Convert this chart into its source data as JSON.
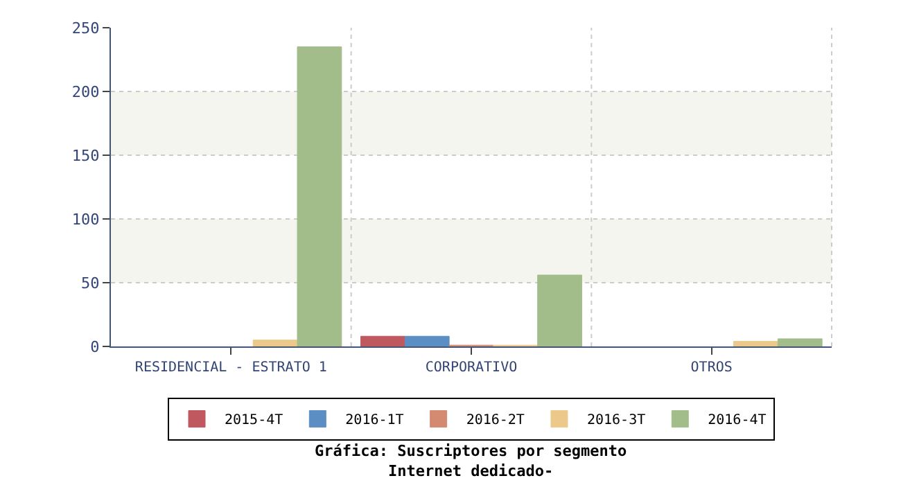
{
  "chart_data": {
    "type": "bar",
    "title": "Gráfica: Suscriptores por segmento\nInternet dedicado-",
    "categories": [
      "RESIDENCIAL - ESTRATO 1",
      "CORPORATIVO",
      "OTROS"
    ],
    "series": [
      {
        "name": "2015-4T",
        "color": "#c05860",
        "values": [
          null,
          8,
          null
        ]
      },
      {
        "name": "2016-1T",
        "color": "#5b8fc4",
        "values": [
          null,
          8,
          null
        ]
      },
      {
        "name": "2016-2T",
        "color": "#d48a70",
        "values": [
          null,
          1,
          null
        ]
      },
      {
        "name": "2016-3T",
        "color": "#ecc98a",
        "values": [
          5,
          1,
          4
        ]
      },
      {
        "name": "2016-4T",
        "color": "#a2bd8a",
        "values": [
          235,
          56,
          6
        ]
      }
    ],
    "ylim": [
      0,
      250
    ],
    "yticks": [
      0,
      50,
      100,
      150,
      200,
      250
    ],
    "bands": [
      {
        "axis": "y",
        "from": 50,
        "to": 100,
        "color": "#f5f5f0"
      },
      {
        "axis": "y",
        "from": 150,
        "to": 200,
        "color": "#f5f5f0"
      }
    ],
    "grid": true,
    "legend": "bottom"
  }
}
